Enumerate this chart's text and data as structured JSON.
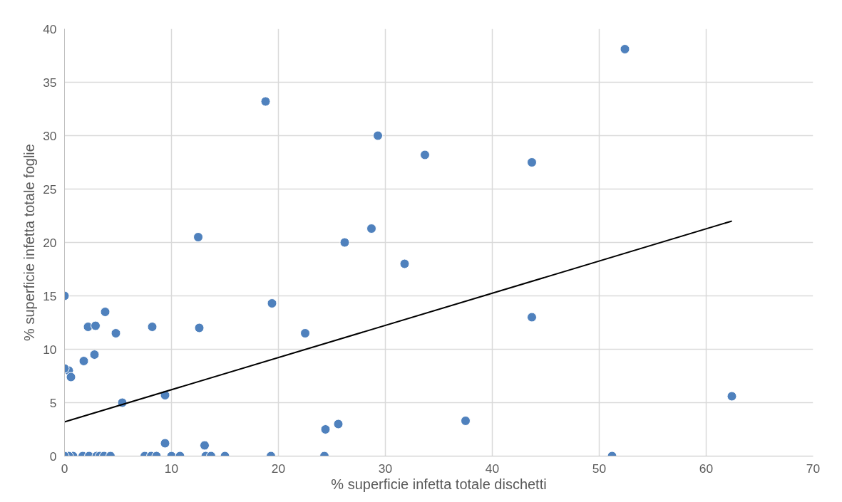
{
  "chart_data": {
    "type": "scatter",
    "xlabel": "% superficie infetta totale dischetti",
    "ylabel": "% superficie infetta totale foglie",
    "xlim": [
      0,
      70
    ],
    "ylim": [
      0,
      40
    ],
    "xticks": [
      0,
      10,
      20,
      30,
      40,
      50,
      60,
      70
    ],
    "yticks": [
      0,
      5,
      10,
      15,
      20,
      25,
      30,
      35,
      40
    ],
    "grid": true,
    "series": [
      {
        "color": "#4f81bd",
        "marker": "circle",
        "x": [
          0.8,
          0.4,
          1.7,
          2.3,
          3,
          3.3,
          3.7,
          4.3,
          7.5,
          8.1,
          8.6,
          10,
          10.8,
          13.2,
          13.7,
          15,
          19.3,
          24.3,
          51.2,
          0.4,
          0.6,
          1.8,
          2.8,
          2.2,
          2.9,
          3.8,
          4.8,
          5.4,
          8.2,
          9.4,
          9.4,
          12.6,
          12.5,
          13.1,
          18.8,
          19.4,
          22.5,
          24.4,
          25.6,
          26.2,
          28.7,
          29.3,
          31.8,
          33.7,
          37.5,
          43.7,
          43.7,
          52.4,
          62.4,
          0,
          0,
          0
        ],
        "values": [
          0,
          0,
          0,
          0,
          0,
          0,
          0,
          0,
          0,
          0,
          0,
          0,
          0,
          0,
          0,
          0,
          0,
          0,
          0,
          8.0,
          7.4,
          8.9,
          9.5,
          12.1,
          12.2,
          13.5,
          11.5,
          5.0,
          12.1,
          5.7,
          1.2,
          12.0,
          20.5,
          1.0,
          33.2,
          14.3,
          11.5,
          2.5,
          3.0,
          20.0,
          21.3,
          30.0,
          18.0,
          28.2,
          3.3,
          27.5,
          13.0,
          38.1,
          5.6,
          15.0,
          8.2,
          0
        ]
      },
      {
        "type": "line",
        "color": "#000000",
        "x": [
          0,
          62.4
        ],
        "values": [
          3.2,
          22.0
        ]
      }
    ]
  }
}
